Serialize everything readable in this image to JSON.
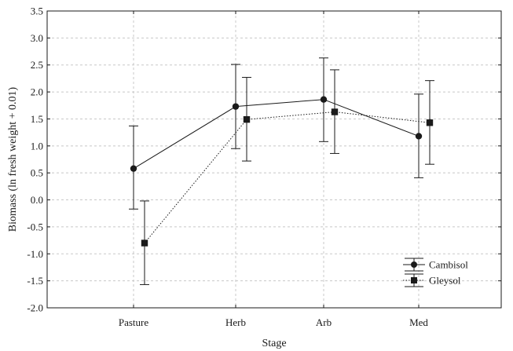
{
  "chart_data": {
    "type": "line",
    "xlabel": "Stage",
    "ylabel": "Biomass (ln fresh weight + 0.01)",
    "categories": [
      "Pasture",
      "Herb",
      "Arb",
      "Med"
    ],
    "ylim": [
      -2.0,
      3.5
    ],
    "yticks": [
      "3.5",
      "3.0",
      "2.5",
      "2.0",
      "1.5",
      "1.0",
      "0.5",
      "0.0",
      "-0.5",
      "-1.0",
      "-1.5",
      "-2.0"
    ],
    "grid": true,
    "legend_position": "bottom-right",
    "series": [
      {
        "name": "Cambisol",
        "marker": "circle",
        "line": "solid",
        "values": [
          0.58,
          1.73,
          1.86,
          1.18
        ],
        "lower": [
          -0.17,
          0.95,
          1.08,
          0.41
        ],
        "upper": [
          1.37,
          2.51,
          2.63,
          1.96
        ]
      },
      {
        "name": "Gleysol",
        "marker": "square",
        "line": "dotted",
        "values": [
          -0.8,
          1.49,
          1.63,
          1.43
        ],
        "lower": [
          -1.57,
          0.72,
          0.86,
          0.66
        ],
        "upper": [
          -0.02,
          2.27,
          2.41,
          2.21
        ]
      }
    ]
  }
}
